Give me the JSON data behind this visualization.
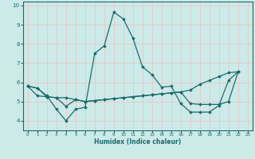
{
  "xlabel": "Humidex (Indice chaleur)",
  "bg_color": "#cceae8",
  "grid_color": "#e8c8c8",
  "line_color": "#1a6b6b",
  "xlim": [
    -0.5,
    23.5
  ],
  "ylim": [
    3.5,
    10.2
  ],
  "xticks": [
    0,
    1,
    2,
    3,
    4,
    5,
    6,
    7,
    8,
    9,
    10,
    11,
    12,
    13,
    14,
    15,
    16,
    17,
    18,
    19,
    20,
    21,
    22,
    23
  ],
  "yticks": [
    4,
    5,
    6,
    7,
    8,
    9,
    10
  ],
  "series1_x": [
    0,
    1,
    2,
    3,
    4,
    5,
    6,
    7,
    8,
    9,
    10,
    11,
    12,
    13,
    14,
    15,
    16,
    17,
    18,
    19,
    20,
    21,
    22
  ],
  "series1_y": [
    5.8,
    5.7,
    5.3,
    4.6,
    4.0,
    4.6,
    4.7,
    7.5,
    7.9,
    9.65,
    9.3,
    8.3,
    6.8,
    6.4,
    5.75,
    5.8,
    4.9,
    4.45,
    4.45,
    4.45,
    4.8,
    6.1,
    6.55
  ],
  "series2_x": [
    0,
    1,
    2,
    3,
    4,
    5,
    6,
    7,
    8,
    9,
    10,
    11,
    12,
    13,
    14,
    15,
    16,
    17,
    18,
    19,
    20,
    21,
    22
  ],
  "series2_y": [
    5.8,
    5.3,
    5.25,
    5.2,
    4.75,
    5.1,
    5.0,
    5.05,
    5.1,
    5.15,
    5.2,
    5.25,
    5.3,
    5.35,
    5.4,
    5.45,
    5.5,
    5.6,
    5.9,
    6.1,
    6.3,
    6.5,
    6.55
  ],
  "series3_x": [
    0,
    1,
    2,
    3,
    4,
    5,
    6,
    7,
    8,
    9,
    10,
    11,
    12,
    13,
    14,
    15,
    16,
    17,
    18,
    19,
    20,
    21,
    22
  ],
  "series3_y": [
    5.8,
    5.7,
    5.25,
    5.2,
    5.2,
    5.1,
    5.0,
    5.05,
    5.1,
    5.15,
    5.2,
    5.25,
    5.3,
    5.35,
    5.4,
    5.45,
    5.5,
    4.9,
    4.85,
    4.85,
    4.85,
    5.0,
    6.55
  ]
}
